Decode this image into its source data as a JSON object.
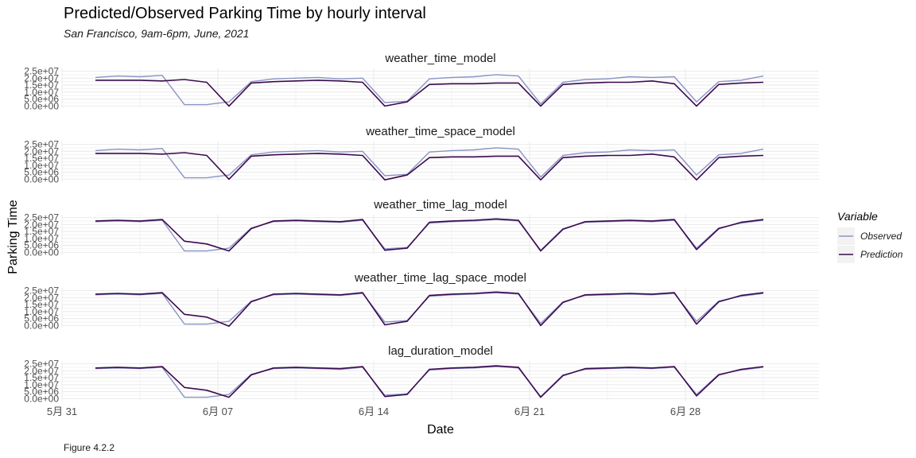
{
  "title": "Predicted/Observed Parking Time by hourly interval",
  "subtitle": "San Francisco, 9am-6pm, June, 2021",
  "caption": "Figure 4.2.2",
  "colors": {
    "observed": "#8a93c4",
    "prediction": "#3b0a4e",
    "grid": "#ebebeb",
    "legend_key_bg": "#f2f2f2"
  },
  "chart_data": {
    "type": "line",
    "xlabel": "Date",
    "ylabel": "Parking Time",
    "x_range": [
      "2021-05-31",
      "2021-07-04"
    ],
    "x_ticks": [
      "2021-05-31",
      "2021-06-07",
      "2021-06-14",
      "2021-06-21",
      "2021-06-28"
    ],
    "x_tick_labels": [
      "5月 31",
      "6月 07",
      "6月 14",
      "6月 21",
      "6月 28"
    ],
    "ylim": [
      -1500000,
      27000000
    ],
    "y_ticks": [
      0,
      5000000,
      10000000,
      15000000,
      20000000,
      25000000
    ],
    "y_tick_labels": [
      "0.0e+00",
      "5.0e+06",
      "1.0e+07",
      "1.5e+07",
      "2.0e+07",
      "2.5e+07"
    ],
    "legend": {
      "title": "Variable",
      "position": "right",
      "entries": [
        "Observed",
        "Prediction"
      ]
    },
    "panels": [
      {
        "name": "weather_time_model",
        "series": [
          {
            "name": "Observed",
            "x": [
              "2021-06-01",
              "2021-06-02",
              "2021-06-03",
              "2021-06-04",
              "2021-06-05",
              "2021-06-06",
              "2021-06-07",
              "2021-06-08",
              "2021-06-09",
              "2021-06-10",
              "2021-06-11",
              "2021-06-12",
              "2021-06-13",
              "2021-06-14",
              "2021-06-15",
              "2021-06-16",
              "2021-06-17",
              "2021-06-18",
              "2021-06-19",
              "2021-06-20",
              "2021-06-21",
              "2021-06-22",
              "2021-06-23",
              "2021-06-24",
              "2021-06-25",
              "2021-06-26",
              "2021-06-27",
              "2021-06-28",
              "2021-06-29",
              "2021-06-30",
              "2021-07-01"
            ],
            "y": [
              20500000,
              21500000,
              21000000,
              22000000,
              1000000,
              1000000,
              3000000,
              17500000,
              19500000,
              20000000,
              20500000,
              19500000,
              20000000,
              2500000,
              3500000,
              19500000,
              20500000,
              21000000,
              22500000,
              21500000,
              1500000,
              17000000,
              19000000,
              19500000,
              21000000,
              20500000,
              21000000,
              3000000,
              17500000,
              18500000,
              21500000
            ]
          },
          {
            "name": "Prediction",
            "x": [
              "2021-06-01",
              "2021-06-02",
              "2021-06-03",
              "2021-06-04",
              "2021-06-05",
              "2021-06-06",
              "2021-06-07",
              "2021-06-08",
              "2021-06-09",
              "2021-06-10",
              "2021-06-11",
              "2021-06-12",
              "2021-06-13",
              "2021-06-14",
              "2021-06-15",
              "2021-06-16",
              "2021-06-17",
              "2021-06-18",
              "2021-06-19",
              "2021-06-20",
              "2021-06-21",
              "2021-06-22",
              "2021-06-23",
              "2021-06-24",
              "2021-06-25",
              "2021-06-26",
              "2021-06-27",
              "2021-06-28",
              "2021-06-29",
              "2021-06-30",
              "2021-07-01"
            ],
            "y": [
              18500000,
              18500000,
              18500000,
              18000000,
              19000000,
              17000000,
              0,
              16500000,
              17500000,
              18000000,
              18500000,
              18000000,
              17000000,
              0,
              3000000,
              15500000,
              16000000,
              16000000,
              16500000,
              16500000,
              0,
              15500000,
              16500000,
              17000000,
              17000000,
              18000000,
              16000000,
              0,
              15500000,
              16500000,
              17000000
            ]
          }
        ]
      },
      {
        "name": "weather_time_space_model",
        "series": [
          {
            "name": "Observed",
            "x": [
              "2021-06-01",
              "2021-06-02",
              "2021-06-03",
              "2021-06-04",
              "2021-06-05",
              "2021-06-06",
              "2021-06-07",
              "2021-06-08",
              "2021-06-09",
              "2021-06-10",
              "2021-06-11",
              "2021-06-12",
              "2021-06-13",
              "2021-06-14",
              "2021-06-15",
              "2021-06-16",
              "2021-06-17",
              "2021-06-18",
              "2021-06-19",
              "2021-06-20",
              "2021-06-21",
              "2021-06-22",
              "2021-06-23",
              "2021-06-24",
              "2021-06-25",
              "2021-06-26",
              "2021-06-27",
              "2021-06-28",
              "2021-06-29",
              "2021-06-30",
              "2021-07-01"
            ],
            "y": [
              20500000,
              21500000,
              21000000,
              22000000,
              1000000,
              1000000,
              3000000,
              17500000,
              19500000,
              20000000,
              20500000,
              19500000,
              20000000,
              2500000,
              3500000,
              19500000,
              20500000,
              21000000,
              22500000,
              21500000,
              1500000,
              17000000,
              19000000,
              19500000,
              21000000,
              20500000,
              21000000,
              3000000,
              17500000,
              18500000,
              21500000
            ]
          },
          {
            "name": "Prediction",
            "x": [
              "2021-06-01",
              "2021-06-02",
              "2021-06-03",
              "2021-06-04",
              "2021-06-05",
              "2021-06-06",
              "2021-06-07",
              "2021-06-08",
              "2021-06-09",
              "2021-06-10",
              "2021-06-11",
              "2021-06-12",
              "2021-06-13",
              "2021-06-14",
              "2021-06-15",
              "2021-06-16",
              "2021-06-17",
              "2021-06-18",
              "2021-06-19",
              "2021-06-20",
              "2021-06-21",
              "2021-06-22",
              "2021-06-23",
              "2021-06-24",
              "2021-06-25",
              "2021-06-26",
              "2021-06-27",
              "2021-06-28",
              "2021-06-29",
              "2021-06-30",
              "2021-07-01"
            ],
            "y": [
              18500000,
              18500000,
              18500000,
              18000000,
              19000000,
              17000000,
              0,
              16500000,
              17500000,
              18000000,
              18500000,
              18000000,
              17000000,
              -500000,
              3000000,
              15500000,
              16000000,
              16000000,
              16500000,
              16500000,
              -500000,
              15500000,
              16500000,
              17000000,
              17000000,
              18000000,
              16000000,
              -500000,
              15500000,
              16500000,
              17000000
            ]
          }
        ]
      },
      {
        "name": "weather_time_lag_model",
        "series": [
          {
            "name": "Observed",
            "x": [
              "2021-06-01",
              "2021-06-02",
              "2021-06-03",
              "2021-06-04",
              "2021-06-05",
              "2021-06-06",
              "2021-06-07",
              "2021-06-08",
              "2021-06-09",
              "2021-06-10",
              "2021-06-11",
              "2021-06-12",
              "2021-06-13",
              "2021-06-14",
              "2021-06-15",
              "2021-06-16",
              "2021-06-17",
              "2021-06-18",
              "2021-06-19",
              "2021-06-20",
              "2021-06-21",
              "2021-06-22",
              "2021-06-23",
              "2021-06-24",
              "2021-06-25",
              "2021-06-26",
              "2021-06-27",
              "2021-06-28",
              "2021-06-29",
              "2021-06-30",
              "2021-07-01"
            ],
            "y": [
              22000000,
              22500000,
              22000000,
              23000000,
              1000000,
              1000000,
              3000000,
              17500000,
              22000000,
              22500000,
              22000000,
              21500000,
              23000000,
              2500000,
              3500000,
              21000000,
              22000000,
              22500000,
              23500000,
              22500000,
              1500000,
              17000000,
              21500000,
              22000000,
              22500000,
              22000000,
              23000000,
              3000000,
              17500000,
              21000000,
              23000000
            ]
          },
          {
            "name": "Prediction",
            "x": [
              "2021-06-01",
              "2021-06-02",
              "2021-06-03",
              "2021-06-04",
              "2021-06-05",
              "2021-06-06",
              "2021-06-07",
              "2021-06-08",
              "2021-06-09",
              "2021-06-10",
              "2021-06-11",
              "2021-06-12",
              "2021-06-13",
              "2021-06-14",
              "2021-06-15",
              "2021-06-16",
              "2021-06-17",
              "2021-06-18",
              "2021-06-19",
              "2021-06-20",
              "2021-06-21",
              "2021-06-22",
              "2021-06-23",
              "2021-06-24",
              "2021-06-25",
              "2021-06-26",
              "2021-06-27",
              "2021-06-28",
              "2021-06-29",
              "2021-06-30",
              "2021-07-01"
            ],
            "y": [
              22500000,
              23000000,
              22500000,
              23500000,
              8000000,
              6000000,
              1000000,
              17000000,
              22500000,
              23000000,
              22500000,
              22000000,
              23500000,
              1500000,
              3000000,
              21500000,
              22500000,
              23000000,
              24000000,
              23000000,
              1000000,
              16500000,
              22000000,
              22500000,
              23000000,
              22500000,
              23500000,
              2000000,
              17000000,
              21500000,
              23500000
            ]
          }
        ]
      },
      {
        "name": "weather_time_lag_space_model",
        "series": [
          {
            "name": "Observed",
            "x": [
              "2021-06-01",
              "2021-06-02",
              "2021-06-03",
              "2021-06-04",
              "2021-06-05",
              "2021-06-06",
              "2021-06-07",
              "2021-06-08",
              "2021-06-09",
              "2021-06-10",
              "2021-06-11",
              "2021-06-12",
              "2021-06-13",
              "2021-06-14",
              "2021-06-15",
              "2021-06-16",
              "2021-06-17",
              "2021-06-18",
              "2021-06-19",
              "2021-06-20",
              "2021-06-21",
              "2021-06-22",
              "2021-06-23",
              "2021-06-24",
              "2021-06-25",
              "2021-06-26",
              "2021-06-27",
              "2021-06-28",
              "2021-06-29",
              "2021-06-30",
              "2021-07-01"
            ],
            "y": [
              22000000,
              22500000,
              22000000,
              23000000,
              1000000,
              1000000,
              3000000,
              17500000,
              22000000,
              22500000,
              22000000,
              21500000,
              23000000,
              2500000,
              3500000,
              21000000,
              22000000,
              22500000,
              23500000,
              22500000,
              1500000,
              17000000,
              21500000,
              22000000,
              22500000,
              22000000,
              23000000,
              3000000,
              17500000,
              21000000,
              23000000
            ]
          },
          {
            "name": "Prediction",
            "x": [
              "2021-06-01",
              "2021-06-02",
              "2021-06-03",
              "2021-06-04",
              "2021-06-05",
              "2021-06-06",
              "2021-06-07",
              "2021-06-08",
              "2021-06-09",
              "2021-06-10",
              "2021-06-11",
              "2021-06-12",
              "2021-06-13",
              "2021-06-14",
              "2021-06-15",
              "2021-06-16",
              "2021-06-17",
              "2021-06-18",
              "2021-06-19",
              "2021-06-20",
              "2021-06-21",
              "2021-06-22",
              "2021-06-23",
              "2021-06-24",
              "2021-06-25",
              "2021-06-26",
              "2021-06-27",
              "2021-06-28",
              "2021-06-29",
              "2021-06-30",
              "2021-07-01"
            ],
            "y": [
              22500000,
              23000000,
              22500000,
              23500000,
              8000000,
              6000000,
              -500000,
              17000000,
              22500000,
              23000000,
              22500000,
              22000000,
              23500000,
              500000,
              3000000,
              21500000,
              22500000,
              23000000,
              24000000,
              23000000,
              0,
              16500000,
              22000000,
              22500000,
              23000000,
              22500000,
              23500000,
              1000000,
              17000000,
              21500000,
              23500000
            ]
          }
        ]
      },
      {
        "name": "lag_duration_model",
        "series": [
          {
            "name": "Observed",
            "x": [
              "2021-06-01",
              "2021-06-02",
              "2021-06-03",
              "2021-06-04",
              "2021-06-05",
              "2021-06-06",
              "2021-06-07",
              "2021-06-08",
              "2021-06-09",
              "2021-06-10",
              "2021-06-11",
              "2021-06-12",
              "2021-06-13",
              "2021-06-14",
              "2021-06-15",
              "2021-06-16",
              "2021-06-17",
              "2021-06-18",
              "2021-06-19",
              "2021-06-20",
              "2021-06-21",
              "2021-06-22",
              "2021-06-23",
              "2021-06-24",
              "2021-06-25",
              "2021-06-26",
              "2021-06-27",
              "2021-06-28",
              "2021-06-29",
              "2021-06-30",
              "2021-07-01"
            ],
            "y": [
              21500000,
              22000000,
              21500000,
              22500000,
              1000000,
              1000000,
              3000000,
              17500000,
              21500000,
              22000000,
              21500000,
              21000000,
              22500000,
              2500000,
              3500000,
              20500000,
              21500000,
              22000000,
              23000000,
              22000000,
              1500000,
              17000000,
              21000000,
              21500000,
              22000000,
              21500000,
              22500000,
              3000000,
              17500000,
              20500000,
              22500000
            ]
          },
          {
            "name": "Prediction",
            "x": [
              "2021-06-01",
              "2021-06-02",
              "2021-06-03",
              "2021-06-04",
              "2021-06-05",
              "2021-06-06",
              "2021-06-07",
              "2021-06-08",
              "2021-06-09",
              "2021-06-10",
              "2021-06-11",
              "2021-06-12",
              "2021-06-13",
              "2021-06-14",
              "2021-06-15",
              "2021-06-16",
              "2021-06-17",
              "2021-06-18",
              "2021-06-19",
              "2021-06-20",
              "2021-06-21",
              "2021-06-22",
              "2021-06-23",
              "2021-06-24",
              "2021-06-25",
              "2021-06-26",
              "2021-06-27",
              "2021-06-28",
              "2021-06-29",
              "2021-06-30",
              "2021-07-01"
            ],
            "y": [
              22000000,
              22500000,
              22000000,
              23000000,
              8000000,
              6000000,
              1000000,
              17000000,
              22000000,
              22500000,
              22000000,
              21500000,
              23000000,
              1500000,
              3000000,
              21000000,
              22000000,
              22500000,
              23500000,
              22500000,
              1000000,
              16500000,
              21500000,
              22000000,
              22500000,
              22000000,
              23000000,
              2000000,
              17000000,
              21000000,
              23000000
            ]
          }
        ]
      }
    ]
  }
}
